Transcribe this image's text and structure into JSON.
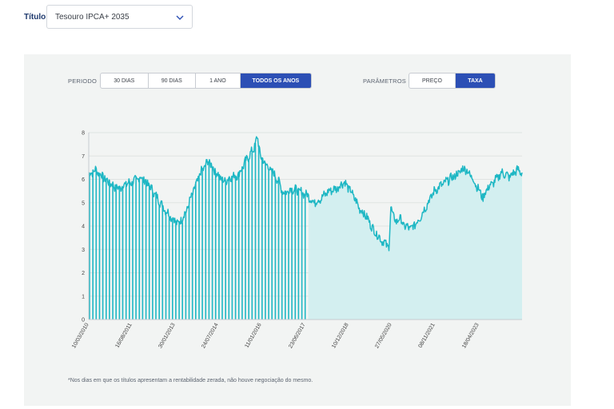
{
  "header": {
    "title_label": "Título",
    "select_value": "Tesouro IPCA+ 2035"
  },
  "controls": {
    "period_label": "PERIODO",
    "period_options": [
      "30 DIAS",
      "90 DIAS",
      "1 ANO",
      "TODOS OS ANOS"
    ],
    "period_selected": "TODOS OS ANOS",
    "params_label": "PARÂMETROS",
    "params_options": [
      "PREÇO",
      "TAXA"
    ],
    "params_selected": "TAXA"
  },
  "footnote": "*Nos dias em que os títulos apresentam a rentabilidade zerada, não houve negociação do mesmo.",
  "colors": {
    "line": "#1eb7c4",
    "area": "#d3eff0",
    "accent": "#2c4fb5",
    "panel": "#f2f4f3"
  },
  "chart_data": {
    "type": "area",
    "ylabel": "",
    "xlabel": "",
    "ylim": [
      0,
      8
    ],
    "yticks": [
      0,
      1,
      2,
      3,
      4,
      5,
      6,
      7,
      8
    ],
    "x_tick_labels": [
      "10/03/2010",
      "16/08/2011",
      "30/01/2013",
      "24/07/2014",
      "11/01/2016",
      "23/06/2017",
      "10/12/2018",
      "27/05/2020",
      "08/11/2021",
      "18/04/2023"
    ],
    "grid": "horizontal",
    "series": [
      {
        "x": [
          "2010-03-10",
          "2010-06-01",
          "2010-09-01",
          "2010-12-01",
          "2011-03-01",
          "2011-06-01",
          "2011-09-01",
          "2011-12-01",
          "2012-03-01",
          "2012-06-01",
          "2012-09-01",
          "2012-12-01",
          "2013-03-01",
          "2013-06-01",
          "2013-09-01",
          "2013-12-01",
          "2014-03-01",
          "2014-06-01",
          "2014-09-01",
          "2014-12-01",
          "2015-03-01",
          "2015-06-01",
          "2015-09-01",
          "2015-10-15",
          "2015-12-01",
          "2016-03-01",
          "2016-06-01",
          "2016-09-01",
          "2016-12-01",
          "2017-03-01",
          "2017-06-23",
          "2017-09-01",
          "2017-12-01",
          "2018-03-01",
          "2018-06-01",
          "2018-09-01",
          "2018-12-10",
          "2019-03-01",
          "2019-06-01",
          "2019-09-01",
          "2019-12-01",
          "2020-03-01",
          "2020-03-23",
          "2020-05-27",
          "2020-07-01",
          "2020-09-01",
          "2020-12-01",
          "2021-03-01",
          "2021-06-01",
          "2021-09-01",
          "2021-11-08",
          "2022-03-01",
          "2022-06-01",
          "2022-09-01",
          "2022-12-01",
          "2023-04-18",
          "2023-06-01",
          "2023-09-01",
          "2023-12-01",
          "2024-03-01",
          "2024-06-01",
          "2024-08-01"
        ],
        "values": [
          6.2,
          6.4,
          6.1,
          5.8,
          5.6,
          5.8,
          5.9,
          6.1,
          5.8,
          5.3,
          4.8,
          4.4,
          4.1,
          4.6,
          5.5,
          6.3,
          6.8,
          6.3,
          5.9,
          6.1,
          6.2,
          6.8,
          7.3,
          7.8,
          6.9,
          6.5,
          6.1,
          5.4,
          5.6,
          5.5,
          5.3,
          5.0,
          5.2,
          5.5,
          5.6,
          5.9,
          5.4,
          4.8,
          4.4,
          3.8,
          3.4,
          3.1,
          4.8,
          4.1,
          4.4,
          4.0,
          3.9,
          4.3,
          4.9,
          5.5,
          5.7,
          6.0,
          6.2,
          6.5,
          6.1,
          5.2,
          5.6,
          5.9,
          6.3,
          6.1,
          6.4,
          6.3
        ]
      }
    ],
    "zero_rate_period": [
      "2010-03-10",
      "2017-06-23"
    ]
  }
}
